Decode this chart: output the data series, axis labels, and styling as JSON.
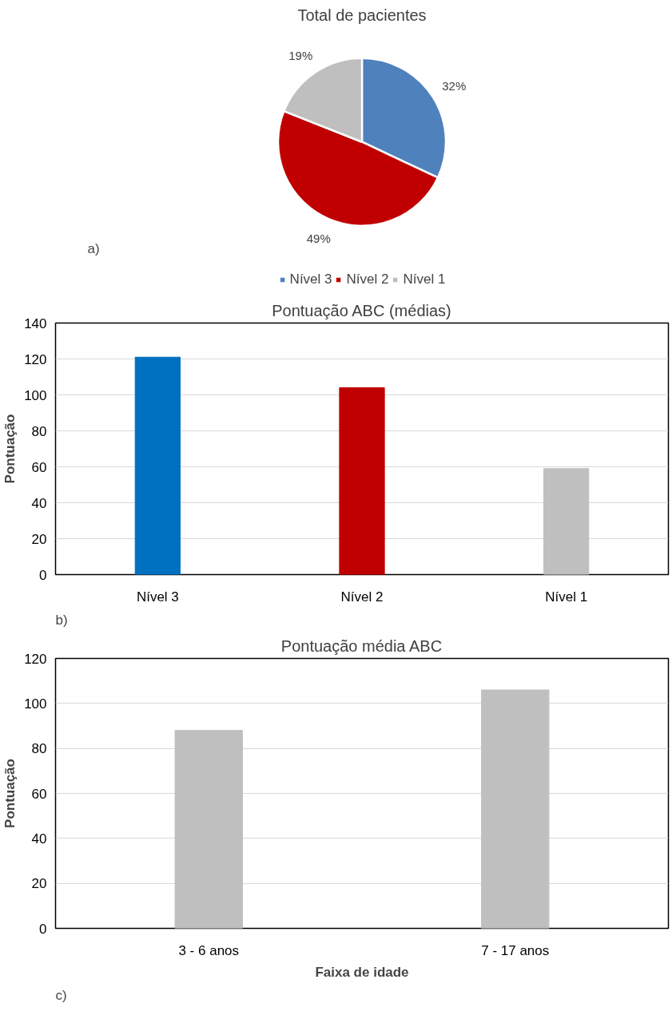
{
  "chart_data": [
    {
      "type": "pie",
      "title": "Total de pacientes",
      "categories": [
        "Nível 3",
        "Nível 2",
        "Nível 1"
      ],
      "values": [
        32,
        49,
        19
      ],
      "colors": [
        "#4f81bd",
        "#c00000",
        "#bfbfbf"
      ],
      "value_labels": [
        "32%",
        "49%",
        "19%"
      ],
      "legend": "bottom",
      "annotations": [
        "a)"
      ]
    },
    {
      "type": "bar",
      "title": "Pontuação ABC (médias)",
      "ylabel": "Pontuação",
      "categories": [
        "Nível 3",
        "Nível 2",
        "Nível 1"
      ],
      "values": [
        121,
        104,
        59
      ],
      "colors": [
        "#0070c0",
        "#c00000",
        "#bfbfbf"
      ],
      "ylim": [
        0,
        140
      ],
      "yticks": [
        0,
        20,
        40,
        60,
        80,
        100,
        120,
        140
      ],
      "grid": "y",
      "annotations": [
        "b)"
      ]
    },
    {
      "type": "bar",
      "title": "Pontuação média ABC",
      "xlabel": "Faixa de idade",
      "ylabel": "Pontuação",
      "categories": [
        "3 - 6 anos",
        "7 - 17 anos"
      ],
      "values": [
        88,
        106
      ],
      "colors": [
        "#bfbfbf",
        "#bfbfbf"
      ],
      "ylim": [
        0,
        120
      ],
      "yticks": [
        0,
        20,
        40,
        60,
        80,
        100,
        120
      ],
      "grid": "y",
      "annotations": [
        "c)"
      ]
    }
  ]
}
